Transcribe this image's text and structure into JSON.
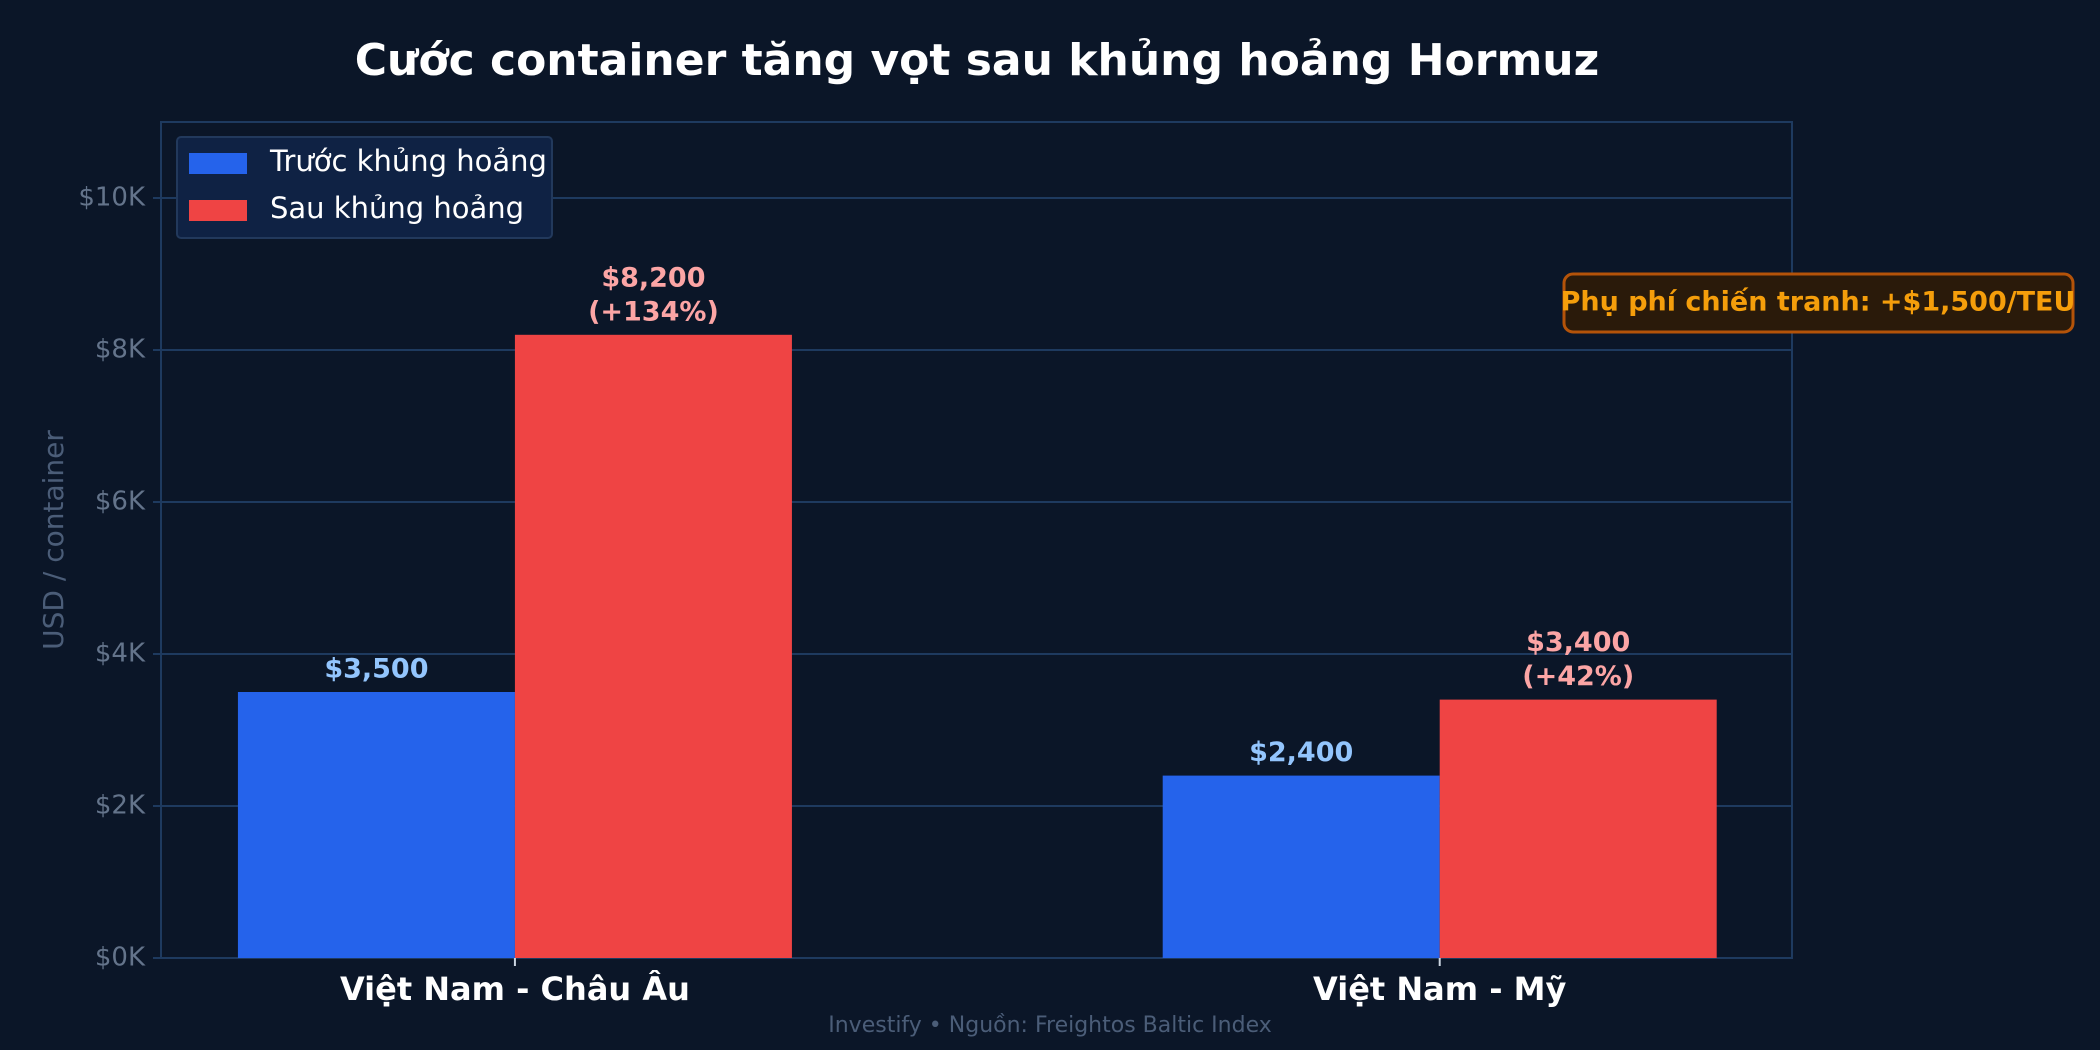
{
  "chart_data": {
    "type": "bar",
    "title": "Cước container tăng vọt sau khủng hoảng Hormuz",
    "y_label": "USD / container",
    "categories": [
      "Việt Nam - Châu Âu",
      "Việt Nam - Mỹ"
    ],
    "series": [
      {
        "name": "Trước khủng hoảng",
        "color": "#2563eb",
        "label_color": "#93c5fd",
        "values": [
          3500,
          2400
        ],
        "value_labels": [
          [
            "$3,500"
          ],
          [
            "$2,400"
          ]
        ]
      },
      {
        "name": "Sau khủng hoảng",
        "color": "#ef4444",
        "label_color": "#fca5a5",
        "values": [
          8200,
          3400
        ],
        "value_labels": [
          [
            "$8,200",
            "(+134%)"
          ],
          [
            "$3,400",
            "(+42%)"
          ]
        ]
      }
    ],
    "ylim": [
      0,
      11000
    ],
    "yticks": [
      {
        "value": 0,
        "label": "$0K"
      },
      {
        "value": 2000,
        "label": "$2K"
      },
      {
        "value": 4000,
        "label": "$4K"
      },
      {
        "value": 6000,
        "label": "$6K"
      },
      {
        "value": 8000,
        "label": "$8K"
      },
      {
        "value": 10000,
        "label": "$10K"
      }
    ],
    "grid": true,
    "legend": "upper left",
    "annotation": "Phụ phí chiến tranh: +$1,500/TEU",
    "footer": "Investify • Nguồn: Freightos Baltic Index"
  }
}
